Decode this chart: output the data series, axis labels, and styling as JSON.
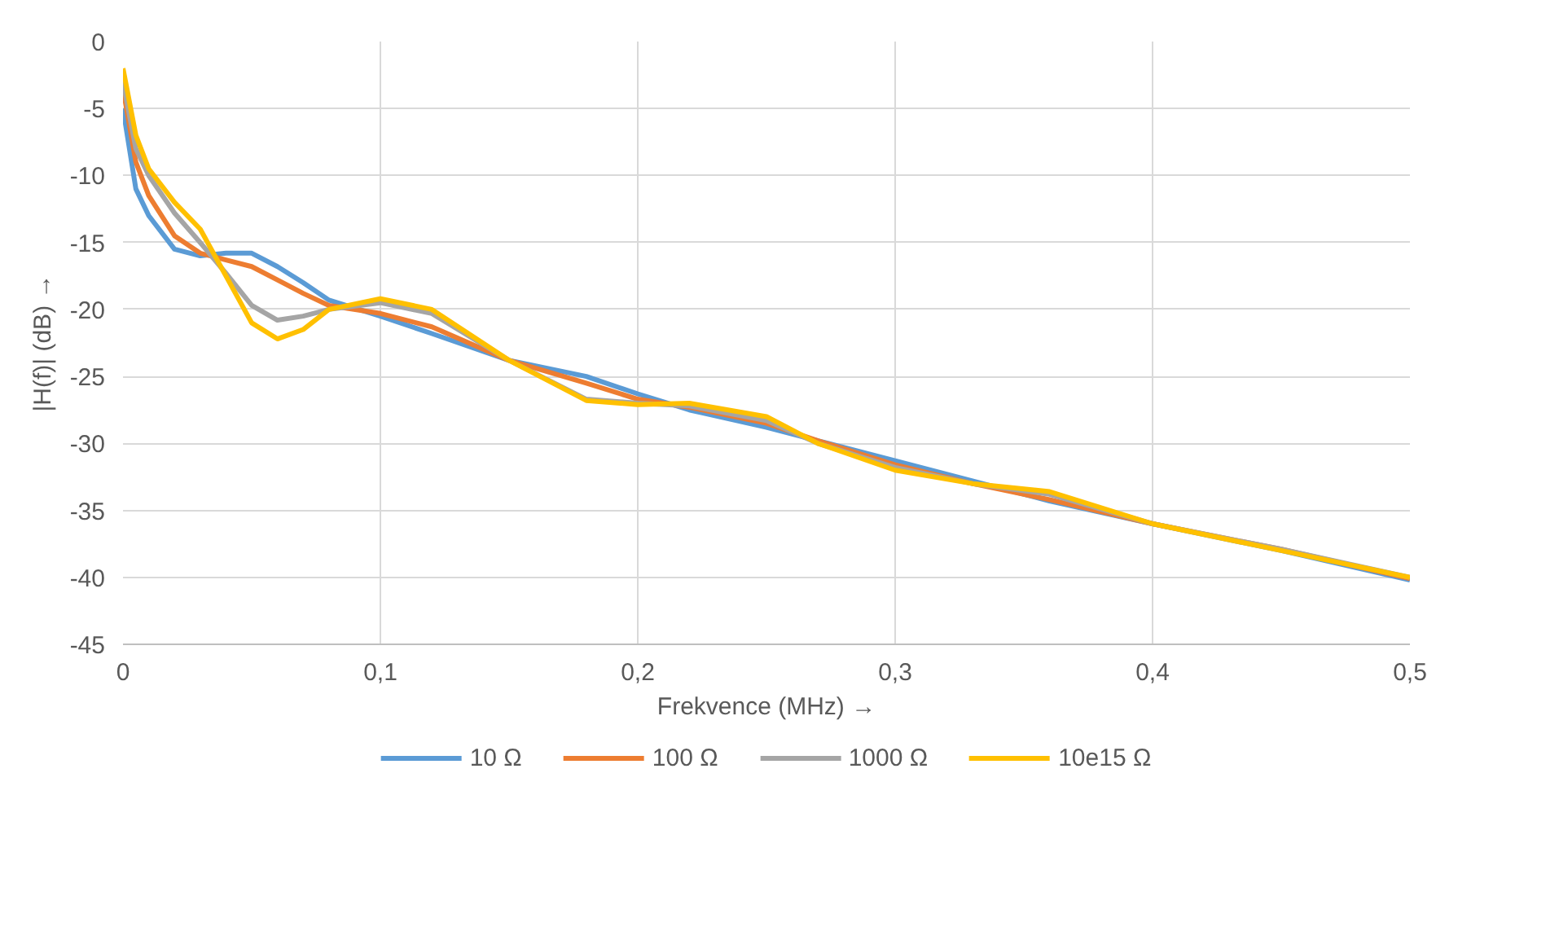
{
  "chart_data": {
    "type": "line",
    "xlabel": "Frekvence (MHz) →",
    "ylabel": "|H(f)| (dB) →",
    "x": [
      0,
      0.005,
      0.01,
      0.02,
      0.03,
      0.04,
      0.05,
      0.06,
      0.07,
      0.08,
      0.1,
      0.12,
      0.15,
      0.18,
      0.2,
      0.22,
      0.25,
      0.27,
      0.3,
      0.33,
      0.36,
      0.4,
      0.45,
      0.5
    ],
    "series": [
      {
        "name": "10 Ω",
        "color": "#5b9bd5",
        "values": [
          -5,
          -11,
          -13,
          -15.5,
          -16,
          -15.8,
          -15.8,
          -16.8,
          -18,
          -19.3,
          -20.5,
          -21.8,
          -23.8,
          -25,
          -26.3,
          -27.5,
          -28.8,
          -29.8,
          -31.3,
          -32.8,
          -34.3,
          -36,
          -38,
          -40.2
        ]
      },
      {
        "name": "100 Ω",
        "color": "#ed7d31",
        "values": [
          -3.5,
          -9,
          -11.5,
          -14.5,
          -15.8,
          -16.3,
          -16.8,
          -17.8,
          -18.8,
          -19.7,
          -20.3,
          -21.3,
          -23.8,
          -25.5,
          -26.7,
          -27.3,
          -28.5,
          -29.8,
          -31.6,
          -33,
          -34.2,
          -36,
          -37.9,
          -40.1
        ]
      },
      {
        "name": "1000 Ω",
        "color": "#a5a5a5",
        "values": [
          -3,
          -8,
          -10,
          -12.8,
          -15,
          -17.3,
          -19.7,
          -20.8,
          -20.5,
          -20,
          -19.5,
          -20.3,
          -23.8,
          -26.7,
          -27,
          -27.2,
          -28.3,
          -30,
          -31.8,
          -33,
          -33.8,
          -36,
          -37.9,
          -40
        ]
      },
      {
        "name": "10e15 Ω",
        "color": "#ffc000",
        "values": [
          -2,
          -7,
          -9.5,
          -12,
          -14,
          -17.5,
          -21,
          -22.2,
          -21.5,
          -20,
          -19.2,
          -20,
          -23.8,
          -26.8,
          -27.1,
          -27,
          -28,
          -30,
          -32,
          -33,
          -33.6,
          -36,
          -38,
          -40
        ]
      }
    ],
    "xlim": [
      0,
      0.5
    ],
    "xticks": [
      0,
      {
        "value": 0.1,
        "label": "0,1"
      },
      {
        "value": 0.2,
        "label": "0,2"
      },
      {
        "value": 0.3,
        "label": "0,3"
      },
      {
        "value": 0.4,
        "label": "0,4"
      },
      {
        "value": 0.5,
        "label": "0,5"
      }
    ],
    "ylim": [
      -45,
      0
    ],
    "yticks": [
      -45,
      -40,
      -35,
      -30,
      -25,
      -20,
      -15,
      -10,
      -5,
      0
    ],
    "grid": true,
    "legend": "bottom",
    "line_style": "solid",
    "marker": "none"
  }
}
